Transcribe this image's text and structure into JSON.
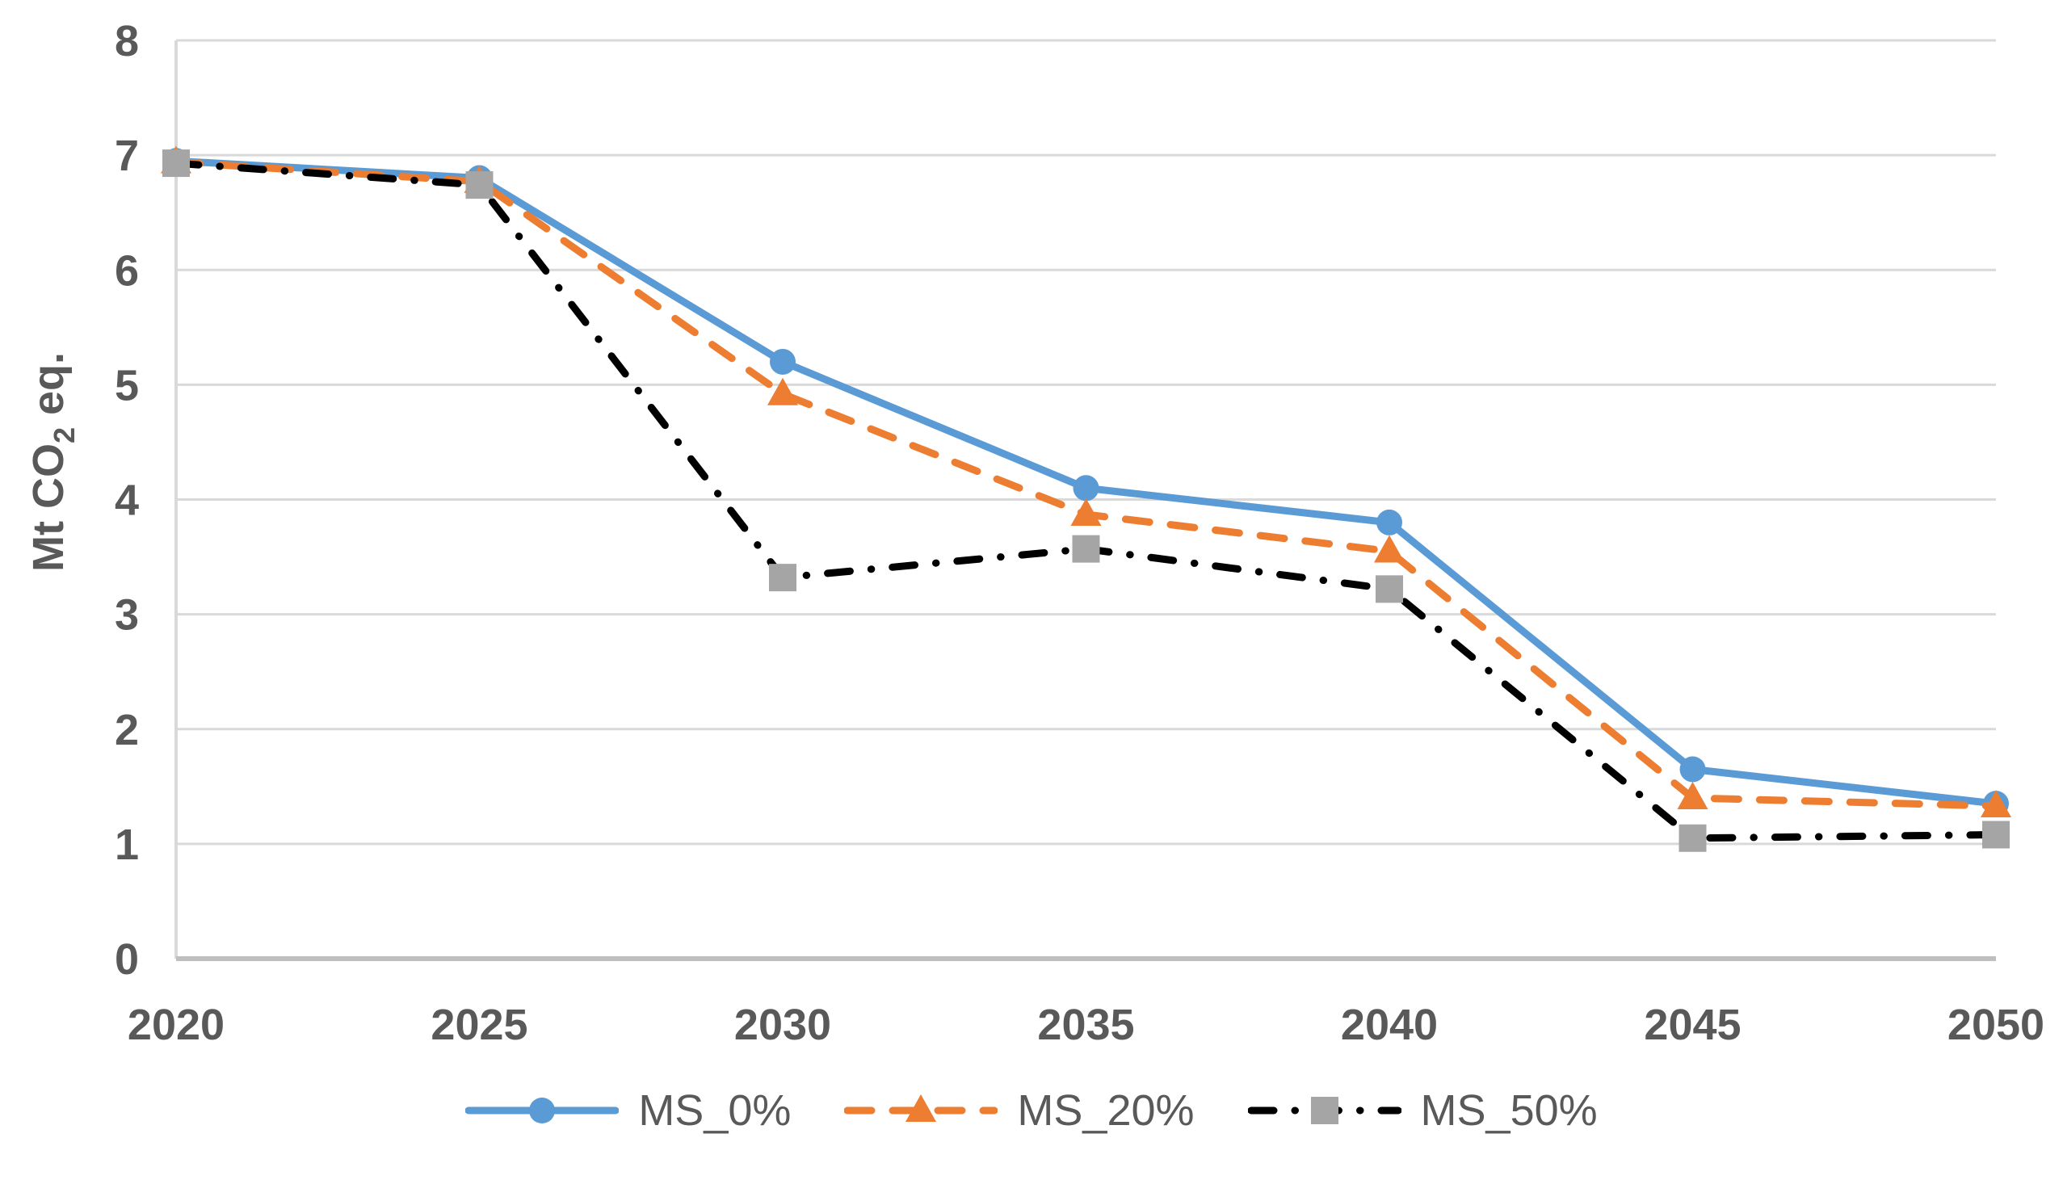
{
  "chart_data": {
    "type": "line",
    "title": "",
    "categories": [
      "2020",
      "2025",
      "2030",
      "2035",
      "2040",
      "2045",
      "2050"
    ],
    "series": [
      {
        "name": "MS_0%",
        "color": "#5B9BD5",
        "marker": "circle",
        "marker_color": "#5B9BD5",
        "line_style": "solid",
        "values": [
          6.95,
          6.8,
          5.2,
          4.1,
          3.8,
          1.65,
          1.35
        ]
      },
      {
        "name": "MS_20%",
        "color": "#ED7D31",
        "marker": "triangle",
        "marker_color": "#ED7D31",
        "line_style": "dashed",
        "values": [
          6.94,
          6.77,
          4.92,
          3.87,
          3.55,
          1.4,
          1.33
        ]
      },
      {
        "name": "MS_50%",
        "color": "#000000",
        "marker": "square",
        "marker_color": "#A5A5A5",
        "line_style": "dash-dot",
        "values": [
          6.93,
          6.74,
          3.32,
          3.57,
          3.22,
          1.05,
          1.08
        ]
      }
    ],
    "xlabel": "",
    "ylabel": "Mt CO₂ eq.",
    "ylabel_parts": {
      "prefix": "Mt CO",
      "sub": "2",
      "suffix": " eq."
    },
    "ylim": [
      0,
      8
    ],
    "yticks": [
      0,
      1,
      2,
      3,
      4,
      5,
      6,
      7,
      8
    ],
    "grid": "horizontal",
    "legend_position": "bottom"
  },
  "colors": {
    "background": "#FFFFFF",
    "gridline": "#D9D9D9",
    "axis_line": "#BFBFBF",
    "tick_label": "#595959",
    "legend_text": "#595959",
    "series_blue": "#5B9BD5",
    "series_orange": "#ED7D31",
    "series_black": "#000000",
    "marker_gray": "#A5A5A5"
  }
}
